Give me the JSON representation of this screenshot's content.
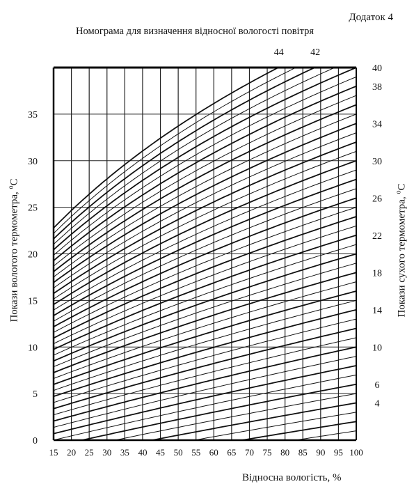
{
  "page_label": "Додаток 4",
  "chart_data": {
    "type": "line",
    "title": "Номограма для визначення відносної вологості повітря",
    "xlabel": "Відносна вологість, %",
    "ylabel": "Покази вологого термометра, ",
    "ylabel_unit": "C",
    "ylabel_unit_sup": "o",
    "y2label": "Покази сухого термометра, ",
    "y2label_unit": "C",
    "y2label_unit_sup": "o",
    "xlim": [
      15,
      100
    ],
    "ylim": [
      0,
      40
    ],
    "x_ticks": [
      "15",
      "20",
      "25",
      "30",
      "35",
      "40",
      "45",
      "50",
      "55",
      "60",
      "65",
      "70",
      "75",
      "80",
      "85",
      "90",
      "95",
      "100"
    ],
    "y_ticks": [
      {
        "value": 0,
        "label": "0"
      },
      {
        "value": 5,
        "label": "5"
      },
      {
        "value": 10,
        "label": "10"
      },
      {
        "value": 15,
        "label": "15"
      },
      {
        "value": 20,
        "label": "20"
      },
      {
        "value": 25,
        "label": "25"
      },
      {
        "value": 30,
        "label": "30"
      },
      {
        "value": 35,
        "label": "35"
      }
    ],
    "right_labels": [
      {
        "value": 40,
        "label": "40"
      },
      {
        "value": 38,
        "label": "38"
      },
      {
        "value": 34,
        "label": "34"
      },
      {
        "value": 30,
        "label": "30"
      },
      {
        "value": 26,
        "label": "26"
      },
      {
        "value": 22,
        "label": "22"
      },
      {
        "value": 18,
        "label": "18"
      },
      {
        "value": 14,
        "label": "14"
      },
      {
        "value": 10,
        "label": "10"
      },
      {
        "value": 6,
        "label": "6"
      },
      {
        "value": 4,
        "label": "4"
      }
    ],
    "top_labels": [
      {
        "value": 44,
        "label": "44"
      },
      {
        "value": 42,
        "label": "42"
      }
    ],
    "dry_bulb_curves_from": 0,
    "dry_bulb_curves_to": 44,
    "grid": true
  }
}
